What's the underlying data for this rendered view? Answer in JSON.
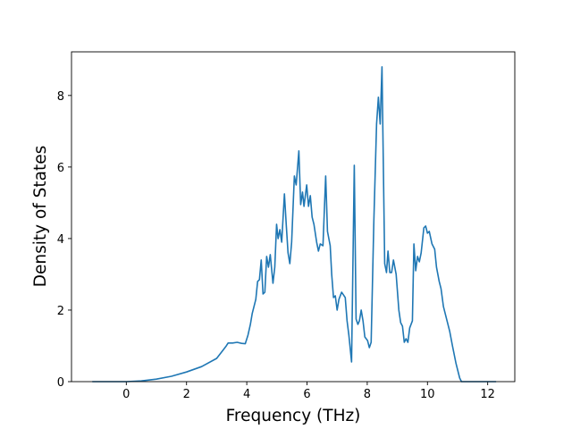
{
  "chart_data": {
    "type": "line",
    "xlabel": "Frequency (THz)",
    "ylabel": "Density of States",
    "xlim": [
      -1.82,
      12.9
    ],
    "ylim": [
      0,
      9.22
    ],
    "xticks": [
      0,
      2,
      4,
      6,
      8,
      10,
      12
    ],
    "yticks": [
      0,
      2,
      4,
      6,
      8
    ],
    "grid": false,
    "series": [
      {
        "color": "#1f77b4",
        "x": [
          -1.13,
          0,
          0.5,
          1.0,
          1.5,
          2,
          2.5,
          3,
          3.23,
          3.32,
          3.38,
          3.53,
          3.68,
          3.83,
          3.95,
          4.04,
          4.12,
          4.18,
          4.3,
          4.36,
          4.42,
          4.48,
          4.54,
          4.6,
          4.66,
          4.72,
          4.78,
          4.87,
          4.93,
          4.99,
          5.04,
          5.1,
          5.16,
          5.25,
          5.31,
          5.37,
          5.43,
          5.49,
          5.58,
          5.64,
          5.73,
          5.79,
          5.85,
          5.9,
          5.99,
          6.05,
          6.11,
          6.17,
          6.23,
          6.32,
          6.38,
          6.44,
          6.53,
          6.62,
          6.68,
          6.77,
          6.82,
          6.88,
          6.94,
          7.0,
          7.06,
          7.15,
          7.27,
          7.33,
          7.39,
          7.48,
          7.57,
          7.63,
          7.69,
          7.74,
          7.8,
          7.86,
          7.92,
          8.01,
          8.07,
          8.13,
          8.22,
          8.31,
          8.37,
          8.43,
          8.49,
          8.58,
          8.64,
          8.69,
          8.75,
          8.81,
          8.87,
          8.96,
          9.05,
          9.11,
          9.17,
          9.23,
          9.29,
          9.35,
          9.41,
          9.5,
          9.55,
          9.61,
          9.67,
          9.73,
          9.79,
          9.88,
          9.94,
          10.0,
          10.06,
          10.15,
          10.24,
          10.3,
          10.39,
          10.45,
          10.53,
          10.62,
          10.74,
          10.83,
          10.95,
          11.07,
          11.13,
          12.28
        ],
        "values": [
          0,
          0,
          0.02,
          0.07,
          0.15,
          0.27,
          0.42,
          0.65,
          0.9,
          1.0,
          1.08,
          1.08,
          1.1,
          1.07,
          1.06,
          1.3,
          1.6,
          1.9,
          2.3,
          2.8,
          2.85,
          3.4,
          2.45,
          2.5,
          3.5,
          3.2,
          3.55,
          2.75,
          3.2,
          4.4,
          4.0,
          4.25,
          3.9,
          5.25,
          4.4,
          3.6,
          3.3,
          3.9,
          5.75,
          5.5,
          6.45,
          4.95,
          5.3,
          4.9,
          5.5,
          4.9,
          5.2,
          4.6,
          4.4,
          3.9,
          3.65,
          3.85,
          3.8,
          5.75,
          4.2,
          3.8,
          3.0,
          2.35,
          2.4,
          2.0,
          2.3,
          2.5,
          2.35,
          1.7,
          1.3,
          0.55,
          6.05,
          1.75,
          1.6,
          1.7,
          2.0,
          1.7,
          1.25,
          1.15,
          0.95,
          1.1,
          4.5,
          7.2,
          7.95,
          7.2,
          8.8,
          3.3,
          3.05,
          3.65,
          3.05,
          3.05,
          3.4,
          3.0,
          2.0,
          1.65,
          1.55,
          1.1,
          1.2,
          1.1,
          1.5,
          1.7,
          3.85,
          3.1,
          3.5,
          3.35,
          3.6,
          4.3,
          4.35,
          4.15,
          4.2,
          3.85,
          3.7,
          3.2,
          2.8,
          2.6,
          2.1,
          1.8,
          1.4,
          1.0,
          0.5,
          0.1,
          0,
          0
        ]
      }
    ]
  }
}
